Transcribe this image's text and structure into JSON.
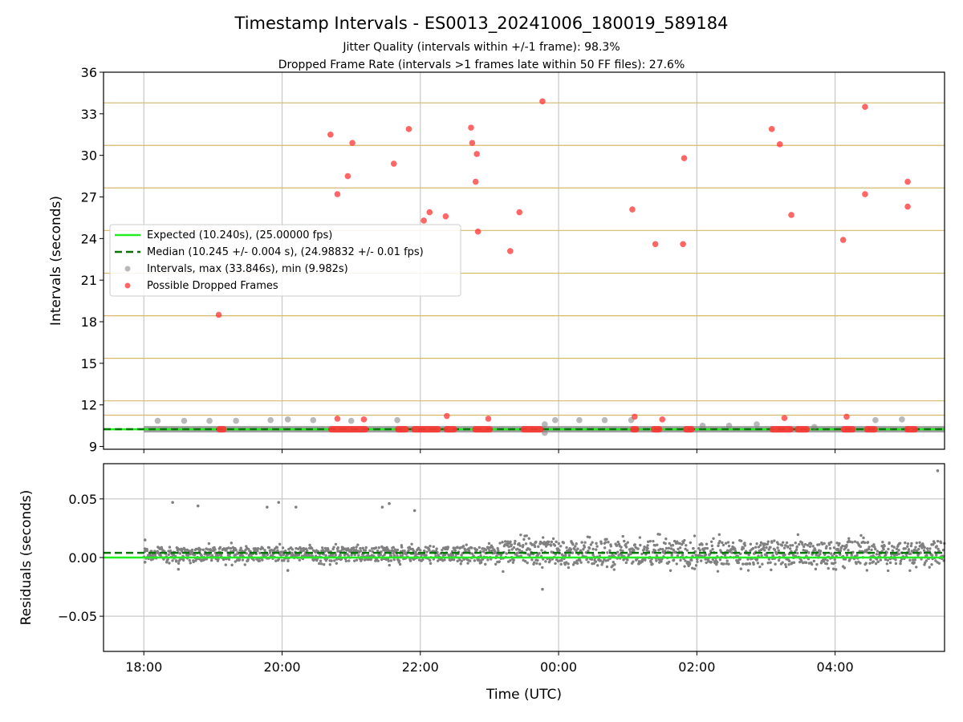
{
  "figure": {
    "title": "Timestamp Intervals - ES0013_20241006_180019_589184",
    "subtitle1": "Jitter Quality (intervals within +/-1 frame): 98.3%",
    "subtitle2": "Dropped Frame Rate (intervals >1 frames late within 50 FF files): 27.6%"
  },
  "colors": {
    "expected": "#22ee22",
    "median": "#007700",
    "intervals": "#808080",
    "dropped": "#ff3333",
    "threshold_lines": "#d4b96a",
    "grid": "#c8c8c8"
  },
  "chart_data": [
    {
      "type": "scatter",
      "title": "",
      "xlabel": "",
      "ylabel": "Intervals (seconds)",
      "xlim": [
        "17:25",
        "05:35"
      ],
      "ylim": [
        8.8,
        36
      ],
      "yticks": [
        9,
        12,
        15,
        18,
        21,
        24,
        27,
        30,
        33,
        36
      ],
      "xticks": [
        "18:00",
        "20:00",
        "22:00",
        "00:00",
        "02:00",
        "04:00"
      ],
      "grid": true,
      "legend_position": "center-left",
      "legend": [
        "Expected (10.240s), (25.00000 fps)",
        "Median (10.245 +/- 0.004 s), (24.98832 +/- 0.01 fps)",
        "Intervals, max (33.846s), min (9.982s)",
        "Possible Dropped Frames"
      ],
      "expected_interval": 10.24,
      "median_interval": 10.245,
      "frame_threshold_lines": [
        10.24,
        11.26,
        12.29,
        15.36,
        18.43,
        21.5,
        24.58,
        27.65,
        30.72,
        33.79
      ],
      "baseline_band": {
        "start": "18:00",
        "end": "05:35",
        "y": 10.24
      },
      "series": [
        {
          "name": "Intervals, max (33.846s), min (9.982s)",
          "points": [
            [
              "18:12",
              10.85
            ],
            [
              "18:35",
              10.85
            ],
            [
              "18:57",
              10.85
            ],
            [
              "19:20",
              10.85
            ],
            [
              "19:50",
              10.9
            ],
            [
              "20:05",
              10.95
            ],
            [
              "20:27",
              10.9
            ],
            [
              "21:00",
              10.85
            ],
            [
              "21:40",
              10.9
            ],
            [
              "23:48",
              10.6
            ],
            [
              "23:57",
              10.9
            ],
            [
              "00:18",
              10.9
            ],
            [
              "00:40",
              10.9
            ],
            [
              "01:03",
              10.9
            ],
            [
              "02:05",
              10.5
            ],
            [
              "02:28",
              10.5
            ],
            [
              "02:52",
              10.6
            ],
            [
              "03:42",
              10.4
            ],
            [
              "04:35",
              10.9
            ],
            [
              "04:58",
              10.95
            ],
            [
              "23:48",
              9.98
            ]
          ]
        },
        {
          "name": "Possible Dropped Frames",
          "points": [
            [
              "19:05",
              18.5
            ],
            [
              "20:42",
              31.5
            ],
            [
              "20:48",
              27.2
            ],
            [
              "20:57",
              28.5
            ],
            [
              "21:01",
              30.9
            ],
            [
              "21:37",
              29.4
            ],
            [
              "21:50",
              31.9
            ],
            [
              "22:03",
              25.3
            ],
            [
              "22:08",
              25.9
            ],
            [
              "22:22",
              25.6
            ],
            [
              "22:44",
              32.0
            ],
            [
              "22:45",
              30.9
            ],
            [
              "22:48",
              28.1
            ],
            [
              "22:49",
              30.1
            ],
            [
              "22:50",
              24.5
            ],
            [
              "23:18",
              23.1
            ],
            [
              "23:26",
              25.9
            ],
            [
              "23:46",
              33.9
            ],
            [
              "01:04",
              26.1
            ],
            [
              "01:24",
              23.6
            ],
            [
              "01:49",
              29.8
            ],
            [
              "01:48",
              23.6
            ],
            [
              "03:05",
              31.9
            ],
            [
              "03:12",
              30.8
            ],
            [
              "03:22",
              25.7
            ],
            [
              "04:07",
              23.9
            ],
            [
              "04:26",
              27.2
            ],
            [
              "04:26",
              33.5
            ],
            [
              "05:03",
              28.1
            ],
            [
              "05:03",
              26.3
            ],
            [
              "20:48",
              11.0
            ],
            [
              "21:11",
              10.95
            ],
            [
              "22:23",
              11.2
            ],
            [
              "22:59",
              11.0
            ],
            [
              "01:06",
              11.15
            ],
            [
              "01:30",
              10.95
            ],
            [
              "03:16",
              11.05
            ],
            [
              "04:10",
              11.15
            ]
          ],
          "clusters": [
            [
              "19:03",
              "19:12"
            ],
            [
              "20:40",
              "21:15"
            ],
            [
              "21:38",
              "21:50"
            ],
            [
              "21:52",
              "22:18"
            ],
            [
              "22:20",
              "22:32"
            ],
            [
              "22:45",
              "23:03"
            ],
            [
              "23:27",
              "23:47"
            ],
            [
              "01:02",
              "01:10"
            ],
            [
              "01:20",
              "01:30"
            ],
            [
              "01:48",
              "01:58"
            ],
            [
              "03:03",
              "03:24"
            ],
            [
              "03:25",
              "03:38"
            ],
            [
              "04:05",
              "04:18"
            ],
            [
              "04:25",
              "04:37"
            ],
            [
              "05:00",
              "05:12"
            ]
          ]
        }
      ]
    },
    {
      "type": "scatter",
      "title": "",
      "xlabel": "Time (UTC)",
      "ylabel": "Residuals (seconds)",
      "xlim": [
        "17:25",
        "05:35"
      ],
      "ylim": [
        -0.08,
        0.08
      ],
      "yticks": [
        -0.05,
        0.0,
        0.05
      ],
      "ytick_labels": [
        "−0.05",
        "0.00",
        "0.05"
      ],
      "xticks": [
        "18:00",
        "20:00",
        "22:00",
        "00:00",
        "02:00",
        "04:00"
      ],
      "grid": true,
      "expected_line": 0.0,
      "median_line": 0.004,
      "series": [
        {
          "name": "",
          "points": [
            [
              "18:01",
              0.015
            ],
            [
              "18:01",
              -0.004
            ],
            [
              "18:25",
              0.047
            ],
            [
              "18:47",
              0.044
            ],
            [
              "18:30",
              -0.01
            ],
            [
              "19:47",
              0.043
            ],
            [
              "20:12",
              0.043
            ],
            [
              "19:57",
              0.047
            ],
            [
              "20:05",
              -0.011
            ],
            [
              "21:27",
              0.043
            ],
            [
              "21:33",
              0.046
            ],
            [
              "21:55",
              0.04
            ],
            [
              "23:46",
              -0.027
            ],
            [
              "05:29",
              0.074
            ]
          ],
          "bands": [
            {
              "from": "18:00",
              "to": "23:05",
              "center": 0.003,
              "spread": 0.006
            },
            {
              "from": "23:05",
              "to": "05:35",
              "center": 0.004,
              "spread": 0.01
            }
          ]
        }
      ]
    }
  ]
}
